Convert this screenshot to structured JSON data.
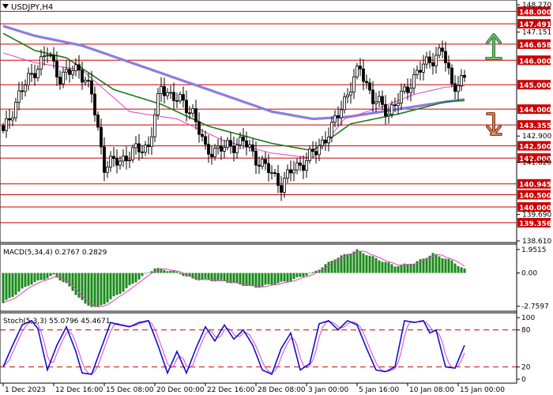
{
  "chart_data": [
    {
      "type": "candlestick",
      "panel": "price",
      "title": "USDJPY,H4",
      "ylim": [
        138.61,
        148.27
      ],
      "axis_ticks": [
        148.27,
        147.151,
        142.9,
        141.82,
        139.69,
        138.61
      ],
      "levels": [
        {
          "value": 148.0,
          "label": "148.000"
        },
        {
          "value": 147.491,
          "label": "147.491"
        },
        {
          "value": 146.658,
          "label": "146.658"
        },
        {
          "value": 146.0,
          "label": "146.000"
        },
        {
          "value": 145.0,
          "label": "145.000"
        },
        {
          "value": 144.0,
          "label": "144.000"
        },
        {
          "value": 143.355,
          "label": "143.355"
        },
        {
          "value": 142.5,
          "label": "142.500"
        },
        {
          "value": 142.0,
          "label": "142.000"
        },
        {
          "value": 140.945,
          "label": "140.945"
        },
        {
          "value": 140.5,
          "label": "140.500"
        },
        {
          "value": 140.0,
          "label": "140.000"
        },
        {
          "value": 139.356,
          "label": "139.356"
        }
      ],
      "close_anchors": [
        [
          0,
          143.0
        ],
        [
          5,
          144.6
        ],
        [
          10,
          145.6
        ],
        [
          14,
          146.3
        ],
        [
          18,
          145.3
        ],
        [
          24,
          145.7
        ],
        [
          28,
          144.6
        ],
        [
          32,
          141.7
        ],
        [
          37,
          141.9
        ],
        [
          42,
          142.3
        ],
        [
          46,
          142.5
        ],
        [
          50,
          144.9
        ],
        [
          54,
          144.5
        ],
        [
          60,
          143.9
        ],
        [
          64,
          142.3
        ],
        [
          70,
          142.4
        ],
        [
          76,
          142.7
        ],
        [
          80,
          142.0
        ],
        [
          84,
          141.5
        ],
        [
          88,
          140.9
        ],
        [
          92,
          141.6
        ],
        [
          95,
          141.8
        ],
        [
          99,
          142.3
        ],
        [
          104,
          143.2
        ],
        [
          108,
          144.4
        ],
        [
          113,
          145.7
        ],
        [
          117,
          144.4
        ],
        [
          122,
          143.9
        ],
        [
          126,
          144.5
        ],
        [
          131,
          145.5
        ],
        [
          135,
          146.0
        ],
        [
          139,
          146.4
        ],
        [
          142,
          145.0
        ],
        [
          146,
          145.2
        ]
      ],
      "ma_slow_anchors": [
        [
          0,
          147.4
        ],
        [
          10,
          147.0
        ],
        [
          25,
          146.6
        ],
        [
          45,
          145.7
        ],
        [
          65,
          144.8
        ],
        [
          85,
          143.9
        ],
        [
          98,
          143.6
        ],
        [
          110,
          143.7
        ],
        [
          125,
          144.0
        ],
        [
          140,
          144.3
        ],
        [
          146,
          144.4
        ]
      ],
      "ma_mid_anchors": [
        [
          0,
          147.1
        ],
        [
          10,
          146.4
        ],
        [
          20,
          146.1
        ],
        [
          35,
          144.8
        ],
        [
          50,
          144.2
        ],
        [
          65,
          143.3
        ],
        [
          85,
          142.6
        ],
        [
          98,
          142.3
        ],
        [
          110,
          143.4
        ],
        [
          125,
          143.8
        ],
        [
          140,
          144.3
        ],
        [
          146,
          144.35
        ]
      ],
      "ma_fast_anchors": [
        [
          0,
          146.3
        ],
        [
          10,
          145.9
        ],
        [
          25,
          145.6
        ],
        [
          40,
          143.9
        ],
        [
          55,
          143.6
        ],
        [
          70,
          142.7
        ],
        [
          85,
          142.2
        ],
        [
          98,
          142.0
        ],
        [
          108,
          143.6
        ],
        [
          120,
          144.1
        ],
        [
          130,
          144.6
        ],
        [
          140,
          144.9
        ],
        [
          146,
          144.95
        ]
      ],
      "colors": {
        "bull": "#ffffff",
        "bear": "#000000",
        "ma_slow": "#8a7ee0",
        "ma_mid": "#1a7a1a",
        "ma_fast": "#e040c8",
        "level_line": "#cc0000",
        "level_label_bg": "#cc0000",
        "arrow_up": "#2e7d32",
        "arrow_down": "#a0522d"
      },
      "arrows": [
        {
          "direction": "up",
          "icon": "up-arrow-icon"
        },
        {
          "direction": "down",
          "icon": "down-arrow-icon"
        }
      ]
    },
    {
      "type": "bar",
      "panel": "macd",
      "title": "MACD(5,34,4) 0.2767 0.2829",
      "axis_ticks": [
        1.9515,
        0.0,
        -2.7597
      ],
      "ylim": [
        -3.05,
        2.2
      ],
      "hist_anchors": [
        [
          0,
          -2.5
        ],
        [
          8,
          -1.0
        ],
        [
          16,
          -0.2
        ],
        [
          20,
          -0.9
        ],
        [
          26,
          -2.6
        ],
        [
          30,
          -2.9
        ],
        [
          38,
          -1.5
        ],
        [
          44,
          -0.3
        ],
        [
          48,
          0.4
        ],
        [
          54,
          0.15
        ],
        [
          60,
          -0.5
        ],
        [
          70,
          -0.7
        ],
        [
          80,
          -1.2
        ],
        [
          90,
          -0.7
        ],
        [
          98,
          0.0
        ],
        [
          105,
          1.2
        ],
        [
          112,
          1.9
        ],
        [
          118,
          1.2
        ],
        [
          124,
          0.6
        ],
        [
          130,
          0.8
        ],
        [
          136,
          1.6
        ],
        [
          142,
          1.0
        ],
        [
          146,
          0.3
        ]
      ],
      "signal_lag": 3,
      "colors": {
        "hist": "#1a8a1a",
        "signal": "#e040c8"
      }
    },
    {
      "type": "line",
      "panel": "stochastic",
      "title": "Stoch(5,3,3) 55.0796 45.4671",
      "axis_ticks": [
        100,
        80,
        20,
        0
      ],
      "ylim": [
        0,
        100
      ],
      "levels": [
        80,
        20
      ],
      "k_anchors": [
        [
          0,
          20
        ],
        [
          3,
          55
        ],
        [
          6,
          88
        ],
        [
          9,
          95
        ],
        [
          11,
          82
        ],
        [
          14,
          15
        ],
        [
          17,
          55
        ],
        [
          20,
          85
        ],
        [
          23,
          45
        ],
        [
          25,
          10
        ],
        [
          28,
          8
        ],
        [
          31,
          50
        ],
        [
          34,
          92
        ],
        [
          37,
          88
        ],
        [
          40,
          85
        ],
        [
          43,
          92
        ],
        [
          46,
          95
        ],
        [
          49,
          55
        ],
        [
          52,
          10
        ],
        [
          55,
          45
        ],
        [
          58,
          10
        ],
        [
          61,
          50
        ],
        [
          64,
          85
        ],
        [
          67,
          62
        ],
        [
          70,
          88
        ],
        [
          73,
          65
        ],
        [
          76,
          80
        ],
        [
          79,
          55
        ],
        [
          82,
          15
        ],
        [
          85,
          8
        ],
        [
          88,
          50
        ],
        [
          91,
          75
        ],
        [
          94,
          15
        ],
        [
          97,
          25
        ],
        [
          100,
          90
        ],
        [
          103,
          95
        ],
        [
          106,
          80
        ],
        [
          109,
          95
        ],
        [
          112,
          88
        ],
        [
          115,
          50
        ],
        [
          118,
          15
        ],
        [
          121,
          12
        ],
        [
          124,
          20
        ],
        [
          127,
          95
        ],
        [
          130,
          92
        ],
        [
          133,
          95
        ],
        [
          135,
          75
        ],
        [
          137,
          80
        ],
        [
          140,
          20
        ],
        [
          143,
          18
        ],
        [
          146,
          55
        ]
      ],
      "d_lag": 2,
      "colors": {
        "k": "#1010c8",
        "d": "#e040c8",
        "level": "#cc0000"
      }
    }
  ],
  "x_axis": {
    "labels": [
      "1 Dec 2023",
      "12 Dec 16:00",
      "15 Dec 08:00",
      "20 Dec 00:00",
      "22 Dec 16:00",
      "28 Dec 08:00",
      "3 Jan 00:00",
      "5 Jan 16:00",
      "10 Jan 08:00",
      "15 Jan 00:00"
    ],
    "label_bars": [
      0,
      16,
      32,
      48,
      64,
      80,
      96,
      112,
      128,
      144
    ]
  }
}
